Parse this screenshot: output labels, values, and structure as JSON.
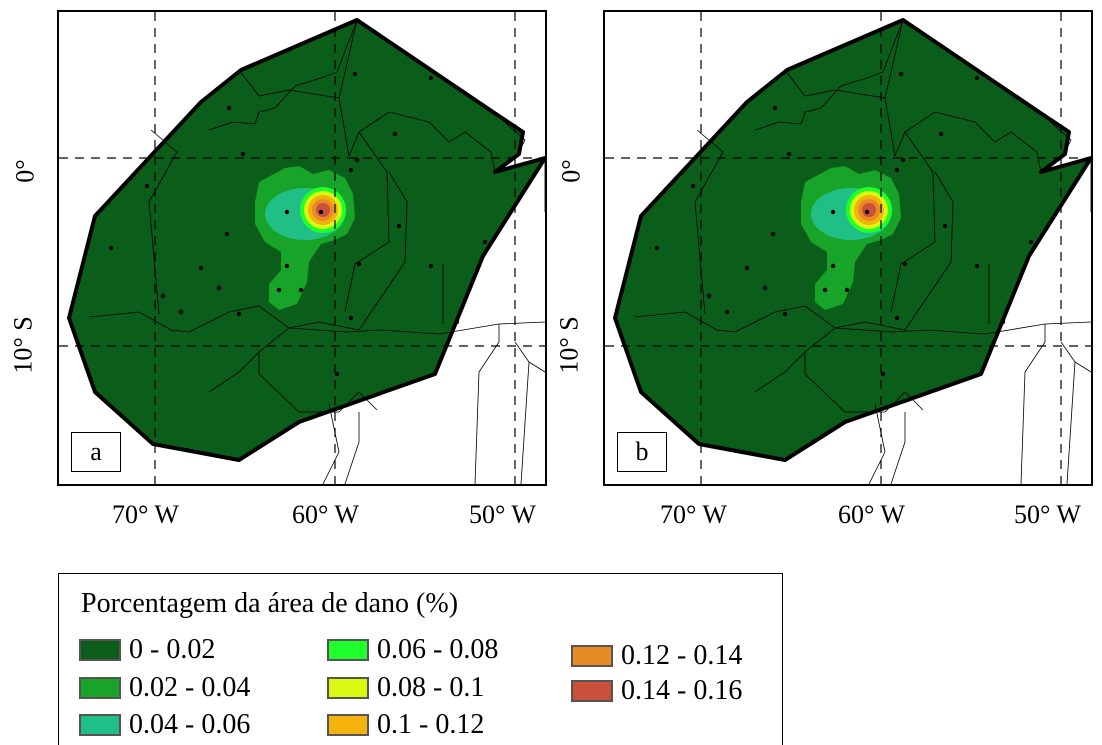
{
  "panels": [
    {
      "label": "a"
    },
    {
      "label": "b"
    }
  ],
  "axes": {
    "y_labels": [
      "0°",
      "10° S"
    ],
    "x_labels": [
      "70° W",
      "60° W",
      "50° W"
    ]
  },
  "legend": {
    "title": "Porcentagem da área de dano (%)",
    "items": [
      {
        "label": "0 - 0.02",
        "color": "#0b5e1a"
      },
      {
        "label": "0.02 - 0.04",
        "color": "#17a428"
      },
      {
        "label": "0.04 - 0.06",
        "color": "#1fbf86"
      },
      {
        "label": "0.06 - 0.08",
        "color": "#1fff2c"
      },
      {
        "label": "0.08 - 0.1",
        "color": "#d9fa10"
      },
      {
        "label": "0.1 - 0.12",
        "color": "#f4b20c"
      },
      {
        "label": "0.12 - 0.14",
        "color": "#e88a25"
      },
      {
        "label": "0.14 - 0.16",
        "color": "#c9503a"
      }
    ]
  },
  "colors": {
    "background_zone": "#0b5e1a",
    "hotspot_1": "#17a428",
    "hotspot_2": "#1fbf86",
    "hotspot_3": "#1fff2c",
    "hotspot_4": "#d9fa10",
    "hotspot_5": "#f4b20c",
    "hotspot_6": "#e88a25",
    "hotspot_7": "#c9503a"
  }
}
